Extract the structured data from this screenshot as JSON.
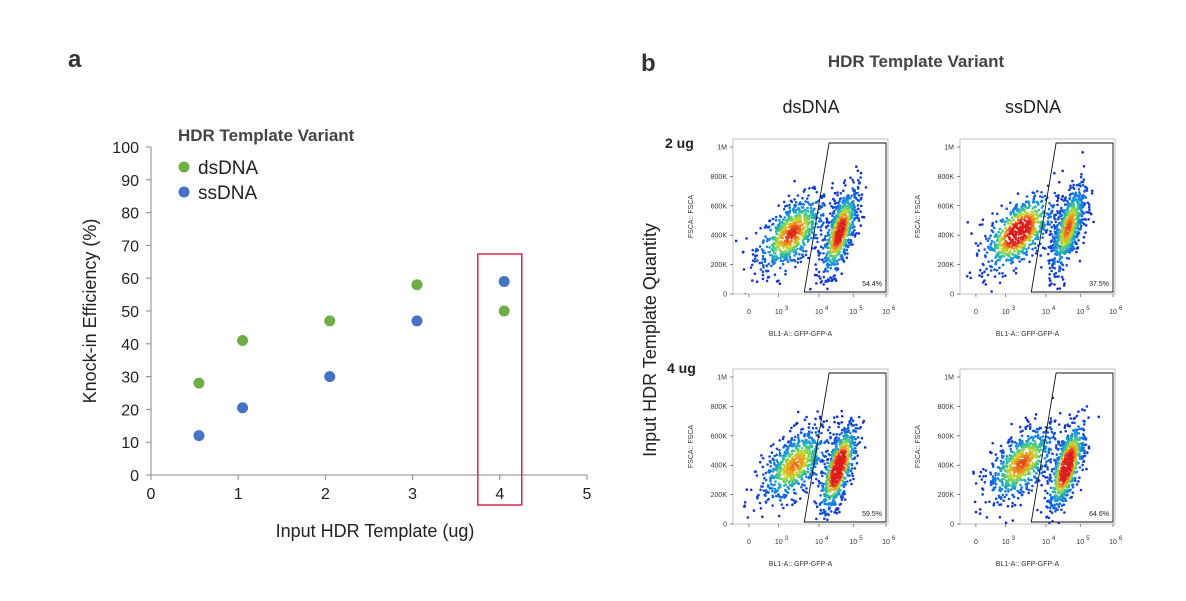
{
  "panel_a": {
    "letter": "a",
    "legend_title": "HDR Template Variant",
    "x_label": "Input HDR Template (ug)",
    "y_label": "Knock-in Efficiency (%)",
    "highlight_x": 4
  },
  "panel_b": {
    "letter": "b",
    "title": "HDR Template Variant",
    "col_headers": [
      "dsDNA",
      "ssDNA"
    ],
    "row_headers": [
      "2 ug",
      "4 ug"
    ],
    "row_axis_label": "Input HDR Template Quantity",
    "facs_y_label": "FSCA:: FSCA",
    "facs_x_label": "BL1-A:: GFP-GFP-A",
    "facs_y_ticks": [
      "0",
      "200K",
      "400K",
      "600K",
      "800K",
      "1M"
    ],
    "facs_x_ticks": [
      "0",
      "10",
      "10",
      "10",
      "10"
    ],
    "facs_x_exponents": [
      "",
      "3",
      "4",
      "5",
      "6"
    ],
    "gate_percent": [
      [
        "54.4%",
        "37.5%"
      ],
      [
        "59.5%",
        "64.6%"
      ]
    ]
  },
  "colors": {
    "dsDNA": "#70AD47",
    "ssDNA": "#4472C4",
    "highlight": "#D6294A"
  },
  "chart_data": [
    {
      "type": "scatter",
      "title": "",
      "legend_title": "HDR Template Variant",
      "xlabel": "Input HDR Template (ug)",
      "ylabel": "Knock-in Efficiency (%)",
      "xlim": [
        0,
        5
      ],
      "ylim": [
        0,
        100
      ],
      "x_ticks": [
        0,
        1,
        2,
        3,
        4,
        5
      ],
      "y_ticks": [
        0,
        10,
        20,
        30,
        40,
        50,
        60,
        70,
        80,
        90,
        100
      ],
      "grid": false,
      "legend_position": "top-left",
      "series": [
        {
          "name": "dsDNA",
          "x": [
            0.55,
            1.05,
            2.05,
            3.05,
            4.05
          ],
          "y": [
            28,
            41,
            47,
            58,
            50
          ]
        },
        {
          "name": "ssDNA",
          "x": [
            0.55,
            1.05,
            2.05,
            3.05,
            4.05
          ],
          "y": [
            12,
            20.5,
            30,
            47,
            59
          ]
        }
      ]
    },
    {
      "type": "scatter",
      "title": "HDR Template Variant",
      "note": "flow cytometry density plots, 2x2 grid",
      "xlabel": "BL1-A:: GFP-GFP-A",
      "ylabel": "FSCA:: FSCA",
      "panels": [
        {
          "row": "2 ug",
          "col": "dsDNA",
          "gate_percent": "54.4%"
        },
        {
          "row": "2 ug",
          "col": "ssDNA",
          "gate_percent": "37.5%"
        },
        {
          "row": "4 ug",
          "col": "dsDNA",
          "gate_percent": "59.5%"
        },
        {
          "row": "4 ug",
          "col": "ssDNA",
          "gate_percent": "64.6%"
        }
      ]
    }
  ]
}
